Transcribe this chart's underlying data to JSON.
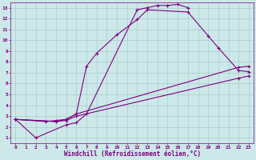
{
  "background_color": "#cce8e8",
  "grid_color": "#aacccc",
  "line_color": "#800080",
  "marker": "+",
  "xlabel": "Windchill (Refroidissement éolien,°C)",
  "xlabel_fontsize": 5.5,
  "ylabel_ticks": [
    1,
    2,
    3,
    4,
    5,
    6,
    7,
    8,
    9,
    10,
    11,
    12,
    13
  ],
  "xticks": [
    0,
    1,
    2,
    3,
    4,
    5,
    6,
    7,
    8,
    9,
    10,
    11,
    12,
    13,
    14,
    15,
    16,
    17,
    18,
    19,
    20,
    21,
    22,
    23
  ],
  "xlim": [
    -0.5,
    23.5
  ],
  "ylim": [
    0.5,
    13.5
  ],
  "curve1_x": [
    0,
    2,
    5,
    6,
    7,
    12,
    13,
    14,
    15,
    16,
    17
  ],
  "curve1_y": [
    2.7,
    1.0,
    2.2,
    2.4,
    3.2,
    12.8,
    13.0,
    13.2,
    13.2,
    13.3,
    13.0
  ],
  "curve2_x": [
    0,
    3,
    4,
    5,
    6,
    7,
    8,
    10,
    12,
    13,
    17,
    19,
    20,
    22,
    23
  ],
  "curve2_y": [
    2.7,
    2.5,
    2.6,
    2.7,
    3.2,
    7.6,
    8.8,
    10.5,
    11.9,
    12.8,
    12.6,
    10.4,
    9.3,
    7.2,
    7.1
  ],
  "curve3_x": [
    0,
    4,
    5,
    6,
    22,
    23
  ],
  "curve3_y": [
    2.7,
    2.5,
    2.7,
    3.2,
    7.5,
    7.6
  ],
  "curve4_x": [
    0,
    4,
    5,
    6,
    22,
    23
  ],
  "curve4_y": [
    2.7,
    2.5,
    2.6,
    3.0,
    6.5,
    6.7
  ]
}
